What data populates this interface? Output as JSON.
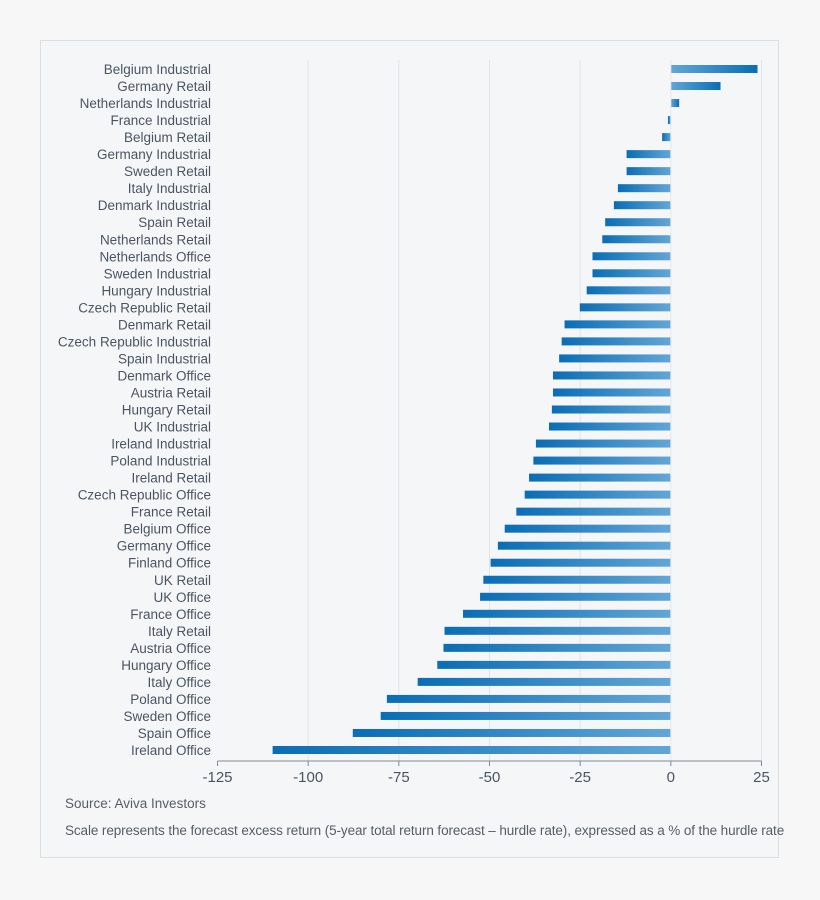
{
  "chart_data": {
    "type": "bar",
    "orientation": "horizontal",
    "categories": [
      "Belgium Industrial",
      "Germany Retail",
      "Netherlands Industrial",
      "France Industrial",
      "Belgium Retail",
      "Germany Industrial",
      "Sweden Retail",
      "Italy Industrial",
      "Denmark Industrial",
      "Spain Retail",
      "Netherlands Retail",
      "Netherlands Office",
      "Sweden Industrial",
      "Hungary Industrial",
      "Czech Republic Retail",
      "Denmark Retail",
      "Czech Republic Industrial",
      "Spain Industrial",
      "Denmark Office",
      "Austria Retail",
      "Hungary Retail",
      "UK Industrial",
      "Ireland Industrial",
      "Poland Industrial",
      "Ireland Retail",
      "Czech Republic Office",
      "France Retail",
      "Belgium Office",
      "Germany Office",
      "Finland Office",
      "UK Retail",
      "UK Office",
      "France Office",
      "Italy Retail",
      "Austria Office",
      "Hungary Office",
      "Italy Office",
      "Poland Office",
      "Sweden Office",
      "Spain Office",
      "Ireland Office"
    ],
    "values": [
      23.9,
      13.7,
      2.3,
      -0.8,
      -2.4,
      -12.2,
      -12.2,
      -14.6,
      -15.7,
      -18.1,
      -18.9,
      -21.6,
      -21.6,
      -23.2,
      -25.1,
      -29.3,
      -30.1,
      -30.8,
      -32.5,
      -32.5,
      -32.8,
      -33.6,
      -37.2,
      -37.9,
      -39.1,
      -40.3,
      -42.6,
      -45.8,
      -47.7,
      -49.7,
      -51.7,
      -52.6,
      -57.3,
      -62.4,
      -62.7,
      -64.4,
      -69.8,
      -78.3,
      -80.0,
      -87.7,
      -109.8
    ],
    "xlim": [
      -125,
      25
    ],
    "xticks": [
      "-125",
      "-100",
      "-75",
      "-50",
      "-25",
      "0",
      "25"
    ],
    "xtick_values": [
      -125,
      -100,
      -75,
      -50,
      -25,
      0,
      25
    ],
    "grid": true,
    "colors": {
      "bar_dark": "#0a6db5",
      "bar_light": "#62a6d6",
      "grid": "#e2e5e8",
      "axis": "#7d8a99"
    }
  },
  "footer": {
    "source": "Source: Aviva Investors",
    "note": "Scale represents the forecast excess return (5-year total return forecast – hurdle rate), expressed as a % of the hurdle rate"
  }
}
